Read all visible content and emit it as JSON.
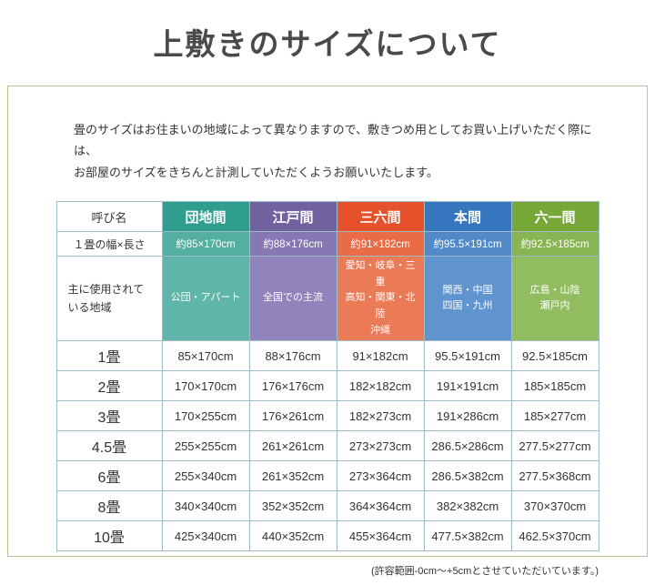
{
  "page": {
    "title": "上敷きのサイズについて",
    "intro_line1": "畳のサイズはお住まいの地域によって異なりますので、敷きつめ用としてお買い上げいただく際には、",
    "intro_line2": "お部屋のサイズをきちんと計測していただくようお願いいたします。",
    "footnote": "(許容範囲-0cm～+5cmとさせていただいています。)"
  },
  "table": {
    "corner_label": "呼び名",
    "size_row_label": "１畳の幅×長さ",
    "region_row_label_line1": "主に使用されて",
    "region_row_label_line2": "いる地域",
    "columns": [
      {
        "name": "団地間",
        "header_color": "#2f9e8e",
        "size_color": "#53afa0",
        "region_color": "#5fb5a7",
        "size": "約85×170cm",
        "regions": [
          "公団・アパート"
        ]
      },
      {
        "name": "江戸間",
        "header_color": "#70619f",
        "size_color": "#8678b3",
        "region_color": "#9184bc",
        "size": "約88×176cm",
        "regions": [
          "全国での主流"
        ]
      },
      {
        "name": "三六間",
        "header_color": "#e4512b",
        "size_color": "#e96c47",
        "region_color": "#eb7a57",
        "size": "約91×182cm",
        "regions": [
          "愛知・岐阜・三重",
          "高知・関東・北陸",
          "沖縄"
        ]
      },
      {
        "name": "本間",
        "header_color": "#3576be",
        "size_color": "#5289c9",
        "region_color": "#6094cf",
        "size": "約95.5×191cm",
        "regions": [
          "関西・中国",
          "四国・九州"
        ]
      },
      {
        "name": "六一間",
        "header_color": "#76a737",
        "size_color": "#88b452",
        "region_color": "#92bc60",
        "size": "約92.5×185cm",
        "regions": [
          "広島・山陰",
          "瀬戸内"
        ]
      }
    ],
    "size_rows": [
      {
        "label": "1畳",
        "values": [
          "85×170cm",
          "88×176cm",
          "91×182cm",
          "95.5×191cm",
          "92.5×185cm"
        ]
      },
      {
        "label": "2畳",
        "values": [
          "170×170cm",
          "176×176cm",
          "182×182cm",
          "191×191cm",
          "185×185cm"
        ]
      },
      {
        "label": "3畳",
        "values": [
          "170×255cm",
          "176×261cm",
          "182×273cm",
          "191×286cm",
          "185×277cm"
        ]
      },
      {
        "label": "4.5畳",
        "values": [
          "255×255cm",
          "261×261cm",
          "273×273cm",
          "286.5×286cm",
          "277.5×277cm"
        ]
      },
      {
        "label": "6畳",
        "values": [
          "255×340cm",
          "261×352cm",
          "273×364cm",
          "286.5×382cm",
          "277.5×368cm"
        ]
      },
      {
        "label": "8畳",
        "values": [
          "340×340cm",
          "352×352cm",
          "364×364cm",
          "382×382cm",
          "370×370cm"
        ]
      },
      {
        "label": "10畳",
        "values": [
          "425×340cm",
          "440×352cm",
          "455×364cm",
          "477.5×382cm",
          "462.5×370cm"
        ]
      }
    ]
  }
}
